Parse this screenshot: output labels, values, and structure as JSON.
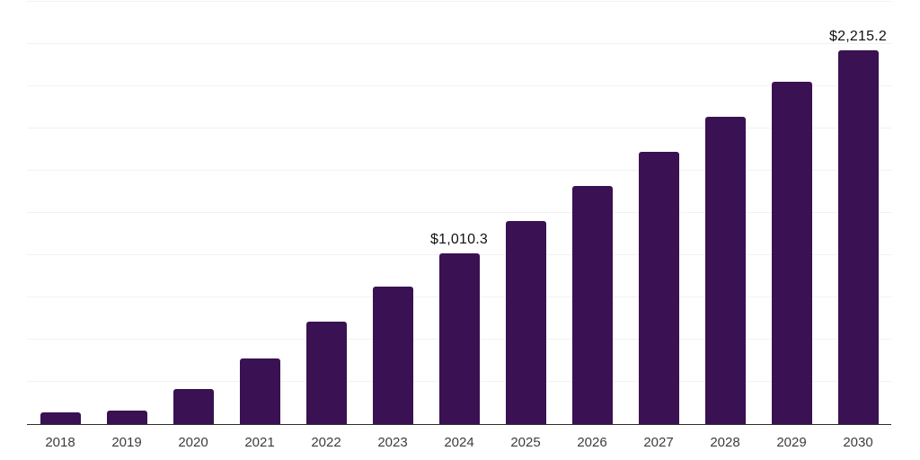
{
  "chart_data": {
    "type": "bar",
    "title": "",
    "xlabel": "",
    "ylabel": "",
    "categories": [
      "2018",
      "2019",
      "2020",
      "2021",
      "2022",
      "2023",
      "2024",
      "2025",
      "2026",
      "2027",
      "2028",
      "2029",
      "2030"
    ],
    "values": [
      69,
      78,
      206,
      388,
      605,
      814,
      1010.3,
      1202,
      1410,
      1610,
      1819,
      2028,
      2215.2
    ],
    "data_labels": {
      "2024": "$1,010.3",
      "2030": "$2,215.2"
    },
    "ylim": [
      0,
      2500
    ],
    "gridline_step": 250,
    "grid": "horizontal-only",
    "y_tick_labels": "none",
    "legend": "none",
    "colors": {
      "bar": "#3A1152",
      "gridline": "#F2F2F2",
      "axis_line": "#2E2E2E",
      "tick_label": "#3D3D3D",
      "data_label": "#111111",
      "background": "#FFFFFF"
    }
  }
}
